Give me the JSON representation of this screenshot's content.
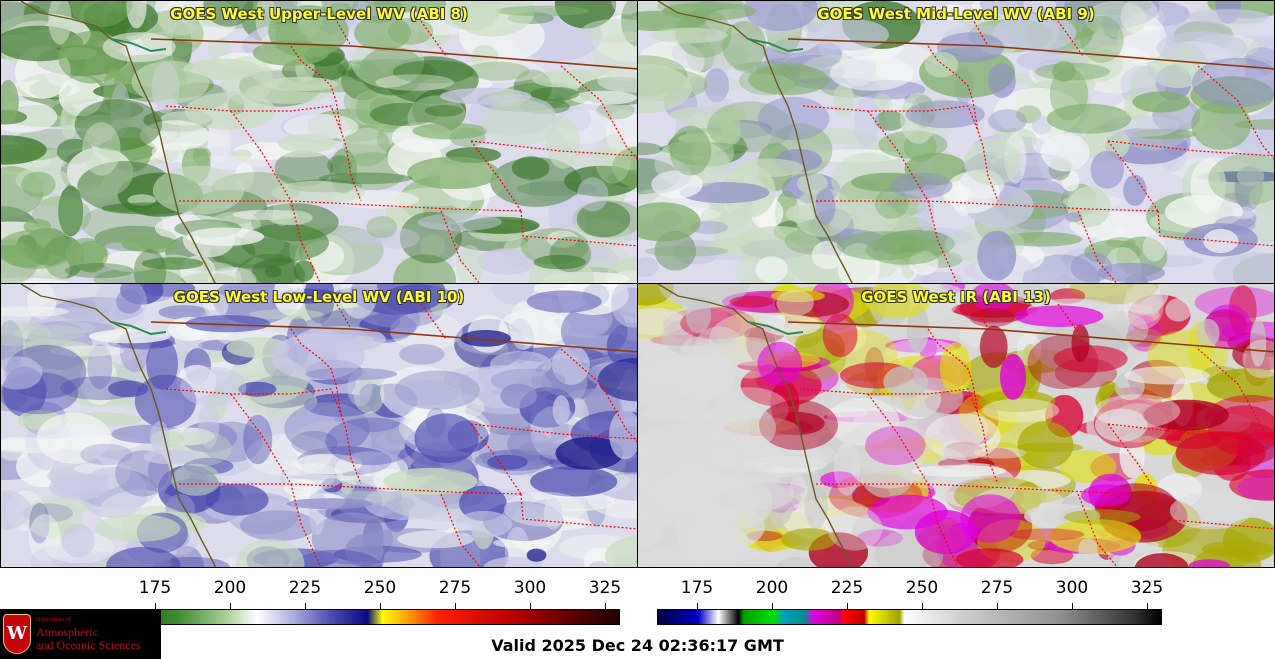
{
  "panels": [
    {
      "title": "GOES West Upper-Level WV (ABI 8)",
      "palette": "wv",
      "bias": 0.15
    },
    {
      "title": "GOES West Mid-Level WV (ABI 9)",
      "palette": "wv",
      "bias": 0.45
    },
    {
      "title": "GOES West Low-Level WV (ABI 10)",
      "palette": "wv",
      "bias": 0.75
    },
    {
      "title": "GOES West IR (ABI 13)",
      "palette": "ir",
      "bias": 0.5
    }
  ],
  "colorbar_wv": {
    "ticks": [
      "175",
      "200",
      "225",
      "250",
      "275",
      "300",
      "325"
    ]
  },
  "colorbar_ir": {
    "ticks": [
      "175",
      "200",
      "225",
      "250",
      "275",
      "300",
      "325"
    ]
  },
  "valid_text": "Valid 2025 Dec 24 02:36:17 GMT",
  "logo": {
    "dept": "Department of",
    "line1": "Atmospheric",
    "line2": "and Oceanic Sciences",
    "mark": "W"
  },
  "colors": {
    "title_text": "#ffff33",
    "state_border": "#ff0000",
    "coast": "#6b5a1e",
    "intl_border": "#8b3a0e"
  }
}
